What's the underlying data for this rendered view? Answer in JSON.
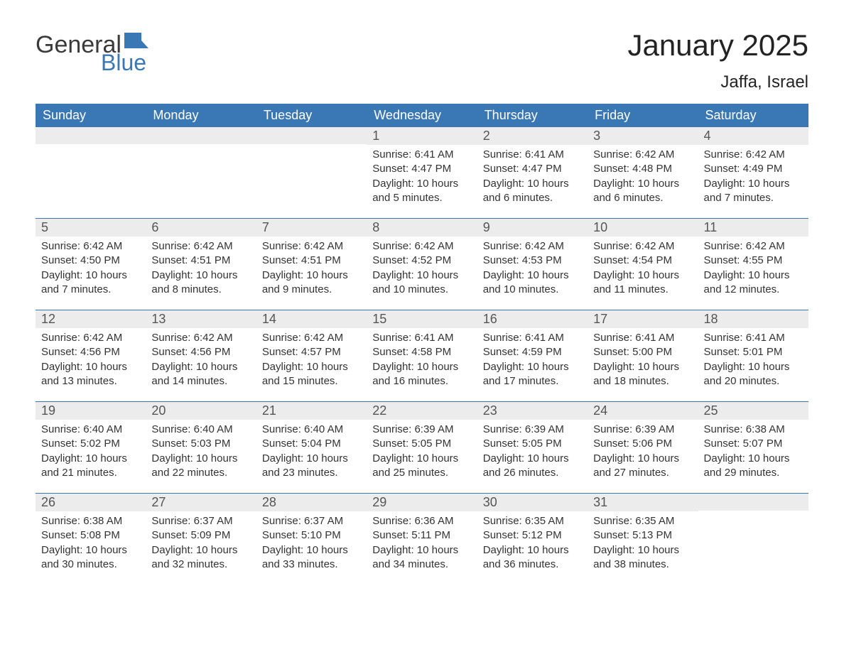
{
  "logo": {
    "text1": "General",
    "text2": "Blue",
    "flag_color": "#3a78b5"
  },
  "title": "January 2025",
  "location": "Jaffa, Israel",
  "colors": {
    "header_bg": "#3a78b5",
    "header_text": "#ffffff",
    "daynum_bg": "#ececec",
    "daynum_text": "#555555",
    "body_text": "#333333",
    "border": "#3a78b5",
    "page_bg": "#ffffff"
  },
  "fonts": {
    "title_size": 42,
    "location_size": 24,
    "header_size": 18,
    "daynum_size": 18,
    "body_size": 15
  },
  "day_names": [
    "Sunday",
    "Monday",
    "Tuesday",
    "Wednesday",
    "Thursday",
    "Friday",
    "Saturday"
  ],
  "weeks": [
    [
      {
        "day": "",
        "sunrise": "",
        "sunset": "",
        "daylight": ""
      },
      {
        "day": "",
        "sunrise": "",
        "sunset": "",
        "daylight": ""
      },
      {
        "day": "",
        "sunrise": "",
        "sunset": "",
        "daylight": ""
      },
      {
        "day": "1",
        "sunrise": "Sunrise: 6:41 AM",
        "sunset": "Sunset: 4:47 PM",
        "daylight": "Daylight: 10 hours and 5 minutes."
      },
      {
        "day": "2",
        "sunrise": "Sunrise: 6:41 AM",
        "sunset": "Sunset: 4:47 PM",
        "daylight": "Daylight: 10 hours and 6 minutes."
      },
      {
        "day": "3",
        "sunrise": "Sunrise: 6:42 AM",
        "sunset": "Sunset: 4:48 PM",
        "daylight": "Daylight: 10 hours and 6 minutes."
      },
      {
        "day": "4",
        "sunrise": "Sunrise: 6:42 AM",
        "sunset": "Sunset: 4:49 PM",
        "daylight": "Daylight: 10 hours and 7 minutes."
      }
    ],
    [
      {
        "day": "5",
        "sunrise": "Sunrise: 6:42 AM",
        "sunset": "Sunset: 4:50 PM",
        "daylight": "Daylight: 10 hours and 7 minutes."
      },
      {
        "day": "6",
        "sunrise": "Sunrise: 6:42 AM",
        "sunset": "Sunset: 4:51 PM",
        "daylight": "Daylight: 10 hours and 8 minutes."
      },
      {
        "day": "7",
        "sunrise": "Sunrise: 6:42 AM",
        "sunset": "Sunset: 4:51 PM",
        "daylight": "Daylight: 10 hours and 9 minutes."
      },
      {
        "day": "8",
        "sunrise": "Sunrise: 6:42 AM",
        "sunset": "Sunset: 4:52 PM",
        "daylight": "Daylight: 10 hours and 10 minutes."
      },
      {
        "day": "9",
        "sunrise": "Sunrise: 6:42 AM",
        "sunset": "Sunset: 4:53 PM",
        "daylight": "Daylight: 10 hours and 10 minutes."
      },
      {
        "day": "10",
        "sunrise": "Sunrise: 6:42 AM",
        "sunset": "Sunset: 4:54 PM",
        "daylight": "Daylight: 10 hours and 11 minutes."
      },
      {
        "day": "11",
        "sunrise": "Sunrise: 6:42 AM",
        "sunset": "Sunset: 4:55 PM",
        "daylight": "Daylight: 10 hours and 12 minutes."
      }
    ],
    [
      {
        "day": "12",
        "sunrise": "Sunrise: 6:42 AM",
        "sunset": "Sunset: 4:56 PM",
        "daylight": "Daylight: 10 hours and 13 minutes."
      },
      {
        "day": "13",
        "sunrise": "Sunrise: 6:42 AM",
        "sunset": "Sunset: 4:56 PM",
        "daylight": "Daylight: 10 hours and 14 minutes."
      },
      {
        "day": "14",
        "sunrise": "Sunrise: 6:42 AM",
        "sunset": "Sunset: 4:57 PM",
        "daylight": "Daylight: 10 hours and 15 minutes."
      },
      {
        "day": "15",
        "sunrise": "Sunrise: 6:41 AM",
        "sunset": "Sunset: 4:58 PM",
        "daylight": "Daylight: 10 hours and 16 minutes."
      },
      {
        "day": "16",
        "sunrise": "Sunrise: 6:41 AM",
        "sunset": "Sunset: 4:59 PM",
        "daylight": "Daylight: 10 hours and 17 minutes."
      },
      {
        "day": "17",
        "sunrise": "Sunrise: 6:41 AM",
        "sunset": "Sunset: 5:00 PM",
        "daylight": "Daylight: 10 hours and 18 minutes."
      },
      {
        "day": "18",
        "sunrise": "Sunrise: 6:41 AM",
        "sunset": "Sunset: 5:01 PM",
        "daylight": "Daylight: 10 hours and 20 minutes."
      }
    ],
    [
      {
        "day": "19",
        "sunrise": "Sunrise: 6:40 AM",
        "sunset": "Sunset: 5:02 PM",
        "daylight": "Daylight: 10 hours and 21 minutes."
      },
      {
        "day": "20",
        "sunrise": "Sunrise: 6:40 AM",
        "sunset": "Sunset: 5:03 PM",
        "daylight": "Daylight: 10 hours and 22 minutes."
      },
      {
        "day": "21",
        "sunrise": "Sunrise: 6:40 AM",
        "sunset": "Sunset: 5:04 PM",
        "daylight": "Daylight: 10 hours and 23 minutes."
      },
      {
        "day": "22",
        "sunrise": "Sunrise: 6:39 AM",
        "sunset": "Sunset: 5:05 PM",
        "daylight": "Daylight: 10 hours and 25 minutes."
      },
      {
        "day": "23",
        "sunrise": "Sunrise: 6:39 AM",
        "sunset": "Sunset: 5:05 PM",
        "daylight": "Daylight: 10 hours and 26 minutes."
      },
      {
        "day": "24",
        "sunrise": "Sunrise: 6:39 AM",
        "sunset": "Sunset: 5:06 PM",
        "daylight": "Daylight: 10 hours and 27 minutes."
      },
      {
        "day": "25",
        "sunrise": "Sunrise: 6:38 AM",
        "sunset": "Sunset: 5:07 PM",
        "daylight": "Daylight: 10 hours and 29 minutes."
      }
    ],
    [
      {
        "day": "26",
        "sunrise": "Sunrise: 6:38 AM",
        "sunset": "Sunset: 5:08 PM",
        "daylight": "Daylight: 10 hours and 30 minutes."
      },
      {
        "day": "27",
        "sunrise": "Sunrise: 6:37 AM",
        "sunset": "Sunset: 5:09 PM",
        "daylight": "Daylight: 10 hours and 32 minutes."
      },
      {
        "day": "28",
        "sunrise": "Sunrise: 6:37 AM",
        "sunset": "Sunset: 5:10 PM",
        "daylight": "Daylight: 10 hours and 33 minutes."
      },
      {
        "day": "29",
        "sunrise": "Sunrise: 6:36 AM",
        "sunset": "Sunset: 5:11 PM",
        "daylight": "Daylight: 10 hours and 34 minutes."
      },
      {
        "day": "30",
        "sunrise": "Sunrise: 6:35 AM",
        "sunset": "Sunset: 5:12 PM",
        "daylight": "Daylight: 10 hours and 36 minutes."
      },
      {
        "day": "31",
        "sunrise": "Sunrise: 6:35 AM",
        "sunset": "Sunset: 5:13 PM",
        "daylight": "Daylight: 10 hours and 38 minutes."
      },
      {
        "day": "",
        "sunrise": "",
        "sunset": "",
        "daylight": ""
      }
    ]
  ]
}
